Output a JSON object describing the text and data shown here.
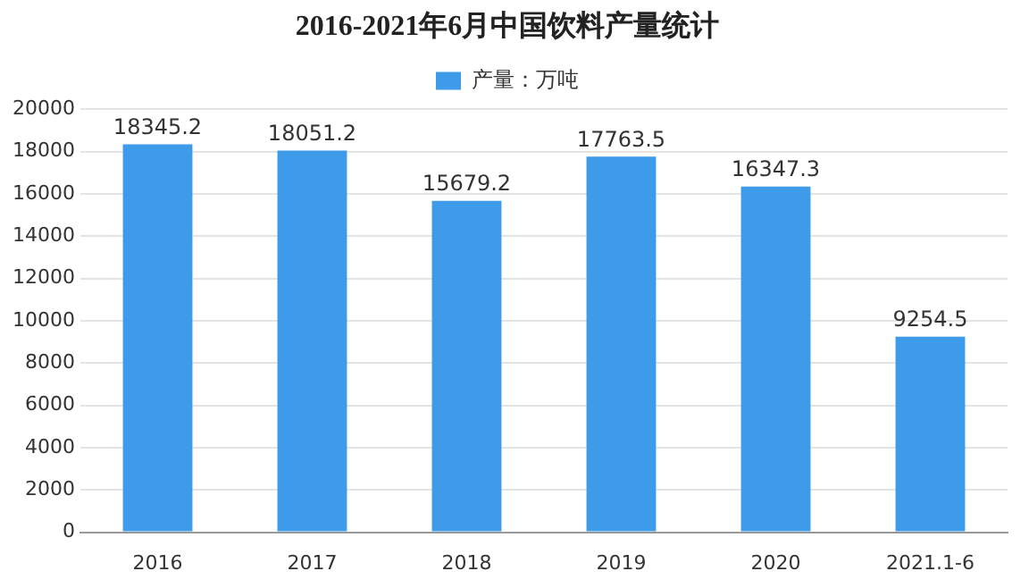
{
  "chart_data": {
    "type": "bar",
    "title": "2016-2021年6月中国饮料产量统计",
    "categories": [
      "2016",
      "2017",
      "2018",
      "2019",
      "2020",
      "2021.1-6"
    ],
    "series": [
      {
        "name": "产量：万吨",
        "color": "#3d9be9",
        "values": [
          18345.2,
          18051.2,
          15679.2,
          17763.5,
          16347.3,
          9254.5
        ]
      }
    ],
    "ylim": [
      0,
      20000
    ],
    "yticks": [
      0,
      2000,
      4000,
      6000,
      8000,
      10000,
      12000,
      14000,
      16000,
      18000,
      20000
    ],
    "grid": "y",
    "legend": "top",
    "data_labels": true
  }
}
